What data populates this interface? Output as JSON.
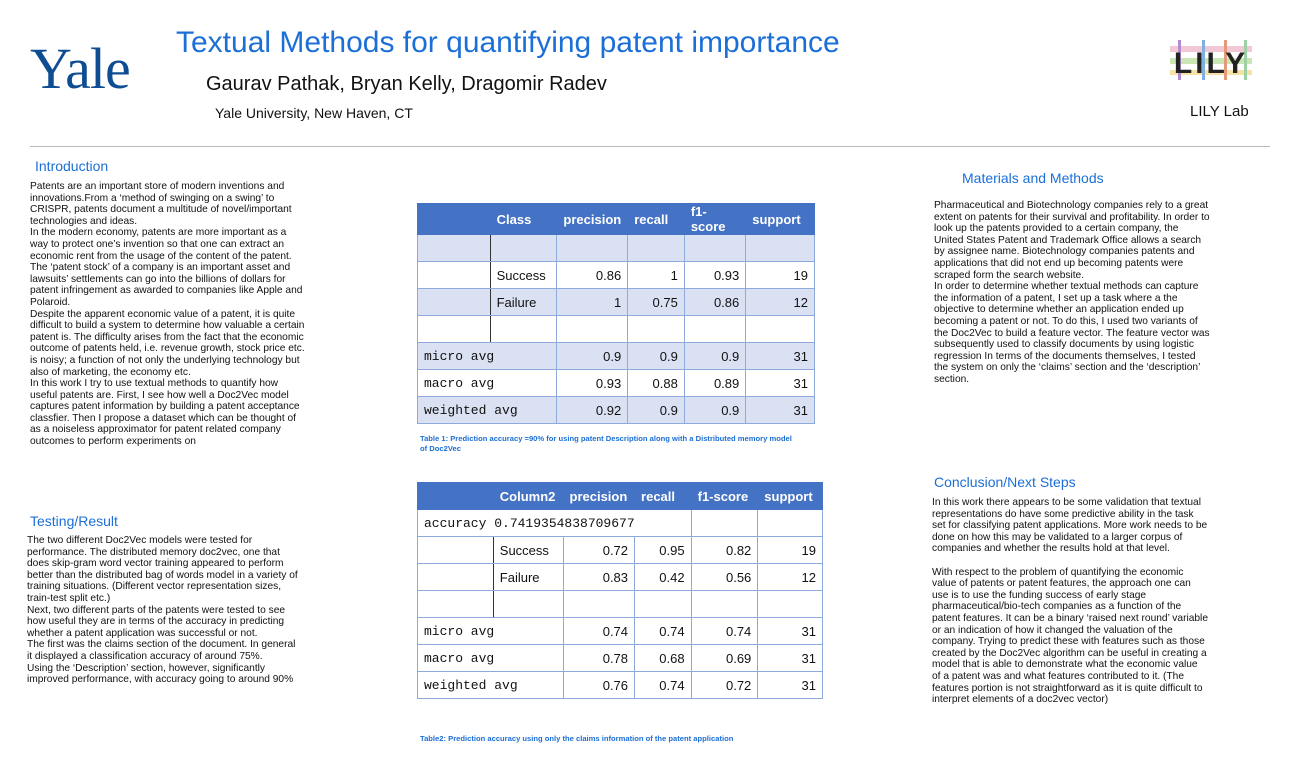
{
  "header": {
    "logo_text": "Yale",
    "title": "Textual Methods for quantifying patent importance",
    "authors": "Gaurav Pathak, Bryan Kelly, Dragomir Radev",
    "affiliation": "Yale University, New Haven, CT",
    "lab_logo_text": "LILY",
    "lab_label": "LILY Lab"
  },
  "introduction": {
    "heading": "Introduction",
    "paragraphs": [
      "Patents are an important store of modern inventions and innovations.From a ‘method of swinging on a swing’ to CRISPR, patents document a multitude of novel/important technologies and ideas.",
      "In the modern economy, patents are more important as a way to protect one’s invention so that one can extract an economic rent from the usage of the content of the patent. The ‘patent stock’ of a company is an important asset and lawsuits’ settlements can go into the billions of dollars for patent infringement as awarded to companies like Apple and Polaroid.",
      "Despite the apparent economic value of a patent, it is quite difficult to build a system to determine how valuable a certain patent is. The difficulty arises from the fact that the economic outcome of patents held, i.e. revenue growth, stock price etc. is noisy; a function of not only the underlying technology but also of marketing, the economy etc.",
      "In this work I try to use textual methods to quantify how useful patents are. First, I see how well a Doc2Vec model captures patent information by building a patent acceptance classfier. Then I propose a dataset which can be thought of as a noiseless approximator for patent related company outcomes to perform experiments on"
    ]
  },
  "testing": {
    "heading": "Testing/Result",
    "paragraphs": [
      "The two different Doc2Vec models were tested for performance. The distributed memory doc2vec, one that does skip-gram word vector training appeared to perform better than the distributed bag of words model in a variety of training situations. (Different vector representation sizes, train-test split etc.)",
      "Next, two different parts of the patents were tested to see how useful they are in terms of the accuracy in predicting whether a patent application was successful or not.",
      "The first was the claims section of the document. In general it displayed a classification accuracy of around 75%.",
      "Using the ‘Description’ section, however, significantly improved performance, with accuracy going to around 90%"
    ]
  },
  "table1": {
    "headers": [
      "",
      "Class",
      "precision",
      "recall",
      "f1-score",
      "support"
    ],
    "rows": [
      [
        "",
        "Success",
        "0.86",
        "1",
        "0.93",
        "19"
      ],
      [
        "",
        "Failure",
        "1",
        "0.75",
        "0.86",
        "12"
      ]
    ],
    "avg_rows": [
      [
        "micro avg",
        "0.9",
        "0.9",
        "0.9",
        "31"
      ],
      [
        "macro avg",
        "0.93",
        "0.88",
        "0.89",
        "31"
      ],
      [
        "weighted avg",
        "0.92",
        "0.9",
        "0.9",
        "31"
      ]
    ],
    "caption": "Table 1: Prediction accuracy =90% for using patent Description along with a Distributed memory model of Doc2Vec"
  },
  "table2": {
    "headers": [
      "",
      "Column2",
      "precision",
      "recall",
      "f1-score",
      "support"
    ],
    "accuracy": "accuracy 0.7419354838709677",
    "rows": [
      [
        "",
        "Success",
        "0.72",
        "0.95",
        "0.82",
        "19"
      ],
      [
        "",
        "Failure",
        "0.83",
        "0.42",
        "0.56",
        "12"
      ]
    ],
    "avg_rows": [
      [
        "micro avg",
        "0.74",
        "0.74",
        "0.74",
        "31"
      ],
      [
        "macro avg",
        "0.78",
        "0.68",
        "0.69",
        "31"
      ],
      [
        "weighted avg",
        "0.76",
        "0.74",
        "0.72",
        "31"
      ]
    ],
    "caption": "Table2: Prediction accuracy using only the claims information of the patent application"
  },
  "materials": {
    "heading": "Materials and Methods",
    "paragraphs": [
      "Pharmaceutical and Biotechnology companies rely to a great extent on patents for their survival and profitability. In order to look up the patents provided to a certain company, the United States Patent and Trademark Office allows a search by assignee name. Biotechnology companies patents and applications that did not end up becoming patents were scraped form the search website.",
      "In order to determine whether textual methods can capture the information of a patent, I set up a task where a the objective to determine whether an application ended up becoming a patent or not. To do this, I used two variants of the Doc2Vec to build a feature vector. The feature vector was subsequently used to classify documents by using logistic regression In terms of the documents themselves, I tested the system on only the ‘claims’ section and the ‘description’ section."
    ]
  },
  "conclusion": {
    "heading": "Conclusion/Next Steps",
    "paragraphs": [
      "In this work there appears to be some validation that textual representations do have some predictive ability in the task set for classifying patent applications. More work needs to be done on how this may be validated to a larger corpus of companies and whether the results hold at that level.",
      "With respect to the problem of quantifying the economic value of patents or patent features, the approach one can use is to use the funding success of early stage pharmaceutical/bio-tech companies as a function of the patent features. It can be a binary ‘raised next round’ variable or an indication of how it changed the valuation of the company. Trying to predict these with features such as those created by the Doc2Vec algorithm can be useful in creating a model that is able to demonstrate what the economic value of a patent was and what features contributed to it. (The features portion is not straightforward as it is quite difficult to interpret elements of a doc2vec vector)"
    ]
  }
}
